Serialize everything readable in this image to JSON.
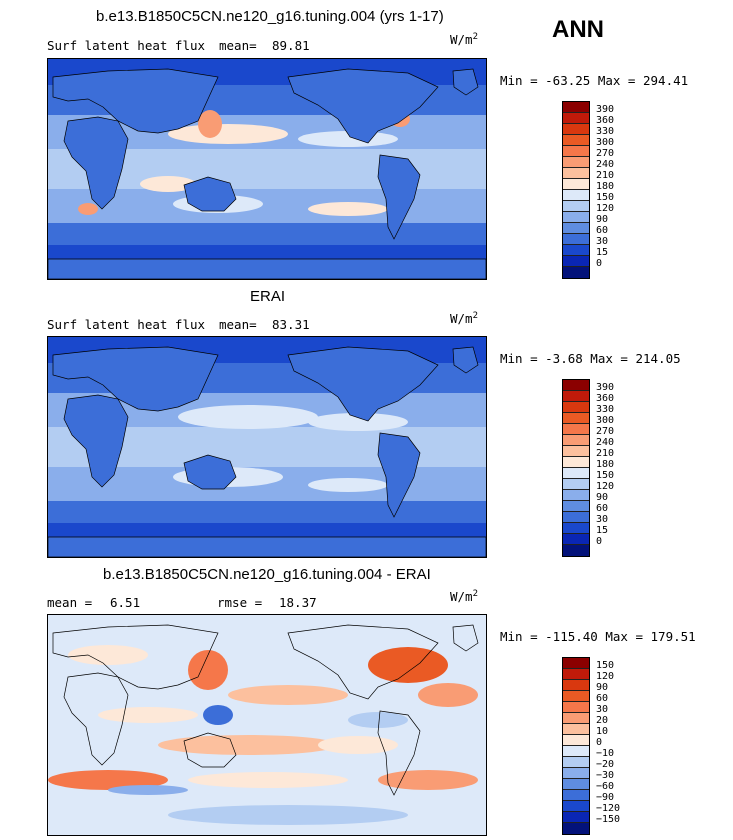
{
  "header": {
    "season": "ANN"
  },
  "panels": [
    {
      "title": "b.e13.B1850C5CN.ne120_g16.tuning.004 (yrs 1-17)",
      "left_text": "Surf latent heat flux",
      "stat_label": "mean=",
      "stat_value": "89.81",
      "rmse_label": "",
      "rmse_value": "",
      "units_base": "W/m",
      "units_exp": "2",
      "minmax": "Min = -63.25 Max = 294.41",
      "colorbar": {
        "labels": [
          "390",
          "360",
          "330",
          "300",
          "270",
          "240",
          "210",
          "180",
          "150",
          "120",
          "90",
          "60",
          "30",
          "15",
          "0"
        ],
        "colors": [
          "#8b0000",
          "#c01a0a",
          "#d9380f",
          "#ea5a24",
          "#f5774a",
          "#f99c74",
          "#fcc09e",
          "#fde8d8",
          "#dde9f9",
          "#b3cdf2",
          "#8aaeeb",
          "#5f8de0",
          "#3c6ed8",
          "#1a48cc",
          "#0a26b4",
          "#03127a"
        ]
      }
    },
    {
      "title": "ERAI",
      "left_text": "Surf latent heat flux",
      "stat_label": "mean=",
      "stat_value": "83.31",
      "rmse_label": "",
      "rmse_value": "",
      "units_base": "W/m",
      "units_exp": "2",
      "minmax": "Min = -3.68 Max = 214.05",
      "colorbar": {
        "labels": [
          "390",
          "360",
          "330",
          "300",
          "270",
          "240",
          "210",
          "180",
          "150",
          "120",
          "90",
          "60",
          "30",
          "15",
          "0"
        ],
        "colors": [
          "#8b0000",
          "#c01a0a",
          "#d9380f",
          "#ea5a24",
          "#f5774a",
          "#f99c74",
          "#fcc09e",
          "#fde8d8",
          "#dde9f9",
          "#b3cdf2",
          "#8aaeeb",
          "#5f8de0",
          "#3c6ed8",
          "#1a48cc",
          "#0a26b4",
          "#03127a"
        ]
      }
    },
    {
      "title": "b.e13.B1850C5CN.ne120_g16.tuning.004 - ERAI",
      "left_text": "",
      "stat_label": "mean =",
      "stat_value": "6.51",
      "rmse_label": "rmse =",
      "rmse_value": "18.37",
      "units_base": "W/m",
      "units_exp": "2",
      "minmax": "Min = -115.40 Max = 179.51",
      "colorbar": {
        "labels": [
          "150",
          "120",
          "90",
          "60",
          "30",
          "20",
          "10",
          "0",
          "−10",
          "−20",
          "−30",
          "−60",
          "−90",
          "−120",
          "−150"
        ],
        "colors": [
          "#8b0000",
          "#c01a0a",
          "#d9380f",
          "#ea5a24",
          "#f5774a",
          "#f99c74",
          "#fcc09e",
          "#fde8d8",
          "#dde9f9",
          "#b3cdf2",
          "#8aaeeb",
          "#5f8de0",
          "#3c6ed8",
          "#1a48cc",
          "#0a26b4",
          "#03127a"
        ]
      }
    }
  ]
}
